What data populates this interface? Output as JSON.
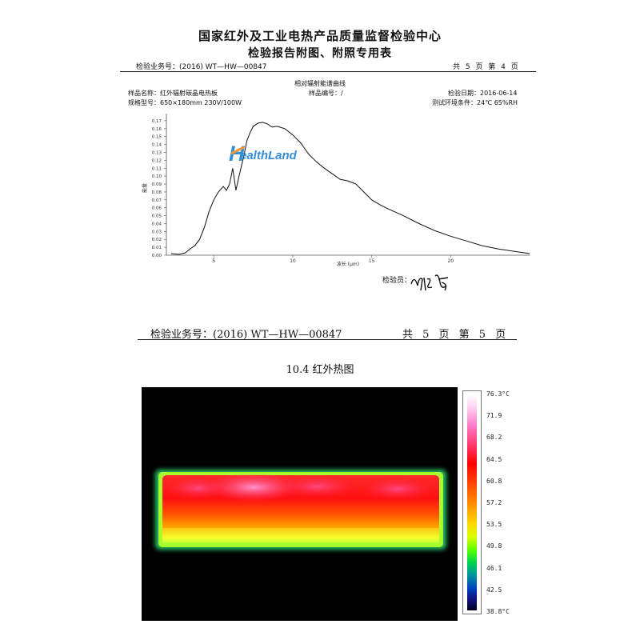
{
  "header": {
    "title": "国家红外及工业电热产品质量监督检验中心",
    "subtitle": "检验报告附图、附照专用表"
  },
  "page1": {
    "business_no": "检验业务号：(2016) WT—HW—00847",
    "page_info": "共 5 页 第 4 页",
    "chart_caption": "相对辐射能谱曲线",
    "sample_name": "样品名称：红外辐射碳晶电热板",
    "sample_no": "样品编号：/",
    "test_date": "检验日期：2016-06-14",
    "spec": "规格型号：650×180mm 230V/100W",
    "environment": "测试环境条件：24℃ 65%RH",
    "inspector_label": "检验员："
  },
  "watermark": {
    "brand": "HealthLand"
  },
  "chart_data": {
    "type": "line",
    "title": "",
    "xlabel": "波长 (μm)",
    "ylabel": "能量",
    "xlim": [
      2,
      25
    ],
    "ylim": [
      0,
      0.175
    ],
    "xticks": [
      5,
      10,
      15,
      20
    ],
    "yticks": [
      0.0,
      0.01,
      0.02,
      0.03,
      0.04,
      0.05,
      0.06,
      0.07,
      0.08,
      0.09,
      0.1,
      0.11,
      0.12,
      0.13,
      0.14,
      0.15,
      0.16,
      0.17
    ],
    "x": [
      2.3,
      2.8,
      3.2,
      3.5,
      3.8,
      4.1,
      4.4,
      4.7,
      5.0,
      5.3,
      5.6,
      5.8,
      6.0,
      6.2,
      6.4,
      6.6,
      6.9,
      7.1,
      7.3,
      7.5,
      7.8,
      8.1,
      8.4,
      8.7,
      9.0,
      9.5,
      10.0,
      10.5,
      11.0,
      11.5,
      12.0,
      12.5,
      13.0,
      13.5,
      14.0,
      14.5,
      15.0,
      15.5,
      16.0,
      17.0,
      18.0,
      19.0,
      20.0,
      21.0,
      22.0,
      23.0,
      24.0,
      25.0
    ],
    "y": [
      0.002,
      0.001,
      0.003,
      0.008,
      0.012,
      0.02,
      0.035,
      0.055,
      0.07,
      0.08,
      0.087,
      0.082,
      0.09,
      0.11,
      0.082,
      0.1,
      0.125,
      0.145,
      0.155,
      0.163,
      0.167,
      0.168,
      0.166,
      0.162,
      0.163,
      0.16,
      0.152,
      0.142,
      0.128,
      0.118,
      0.11,
      0.103,
      0.096,
      0.094,
      0.09,
      0.08,
      0.07,
      0.064,
      0.059,
      0.05,
      0.04,
      0.031,
      0.024,
      0.018,
      0.012,
      0.008,
      0.005,
      0.002
    ]
  },
  "page2": {
    "business_no": "检验业务号：(2016) WT—HW—00847",
    "page_info": "共 5 页 第 5 页",
    "section_title": "10.4 红外热图"
  },
  "thermal_scale": {
    "labels": [
      "76.3°C",
      "71.9",
      "68.2",
      "64.5",
      "60.8",
      "57.2",
      "53.5",
      "49.8",
      "46.1",
      "42.5",
      "38.8°C"
    ]
  }
}
